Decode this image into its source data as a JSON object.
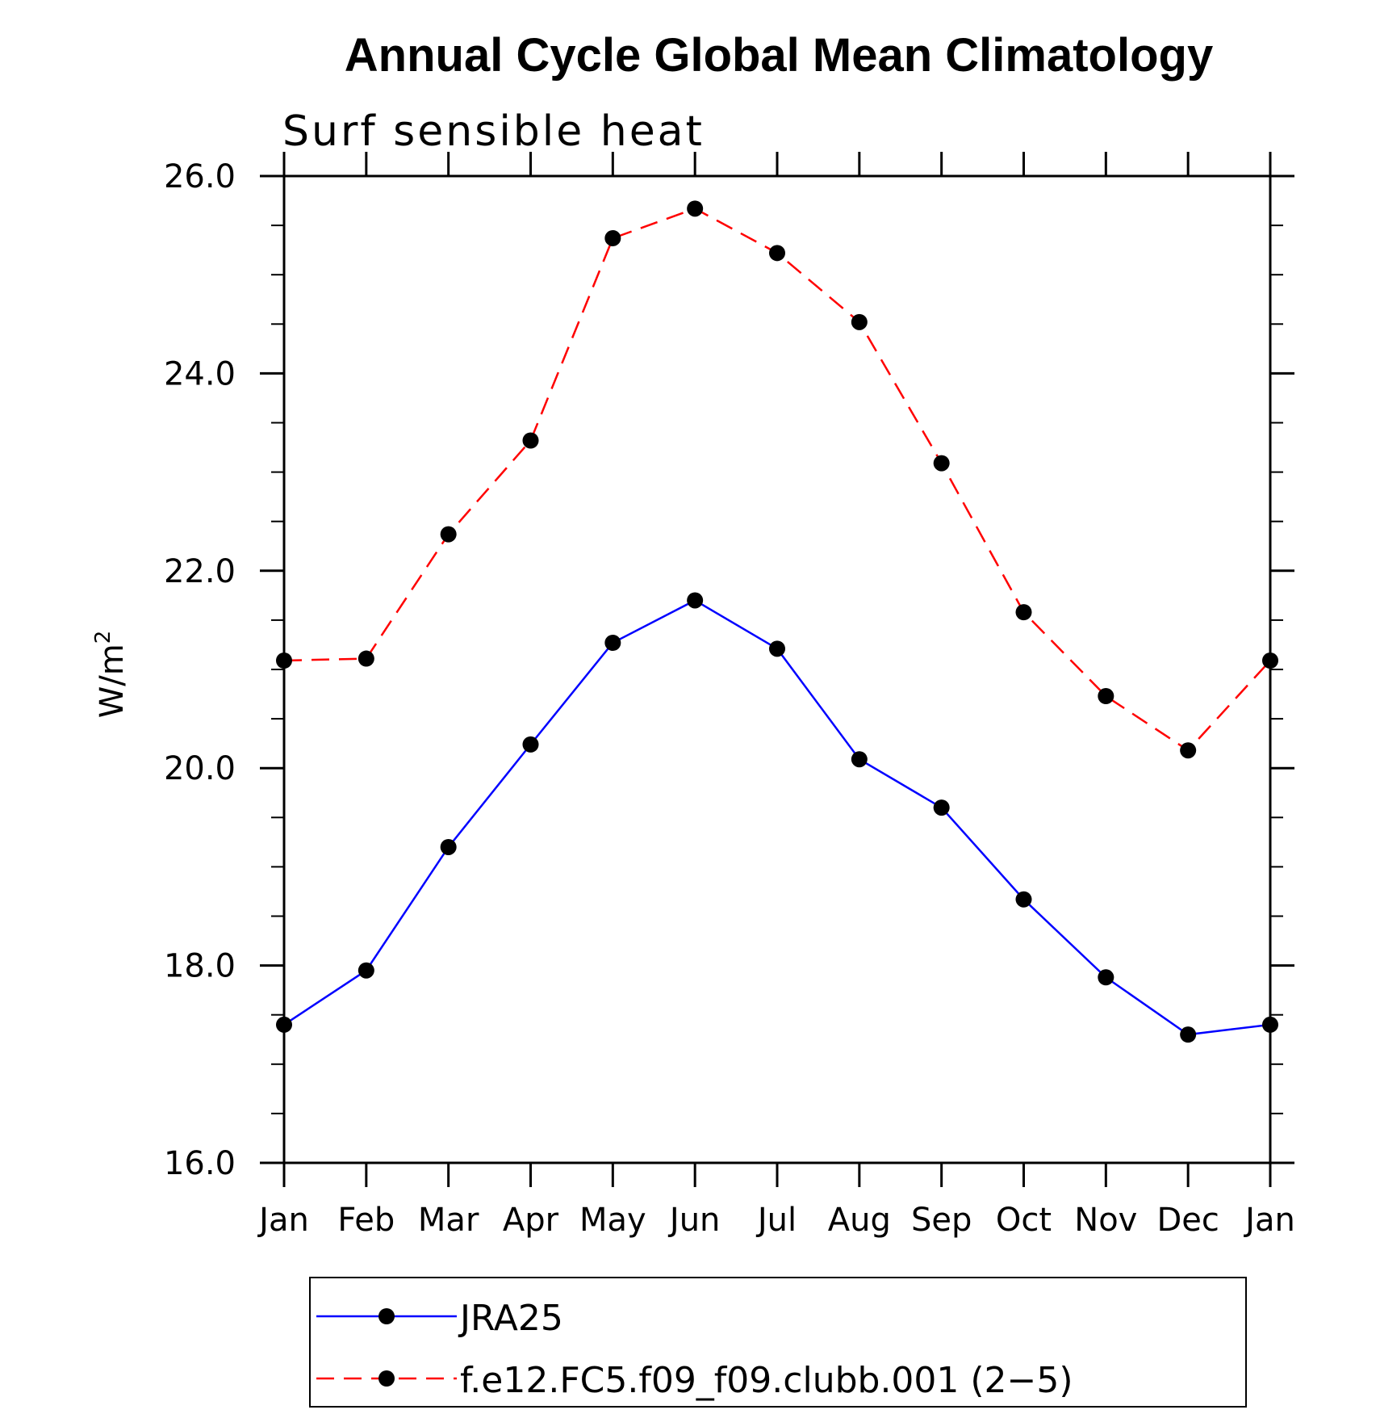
{
  "chart_data": {
    "type": "line",
    "title": "Annual Cycle Global Mean Climatology",
    "subtitle": "Surf sensible heat",
    "xlabel": "",
    "ylabel": "W/m",
    "ylabel_sup": "2",
    "categories": [
      "Jan",
      "Feb",
      "Mar",
      "Apr",
      "May",
      "Jun",
      "Jul",
      "Aug",
      "Sep",
      "Oct",
      "Nov",
      "Dec",
      "Jan"
    ],
    "ylim": [
      16.0,
      26.0
    ],
    "yticks": [
      16.0,
      18.0,
      20.0,
      22.0,
      24.0,
      26.0
    ],
    "ytick_labels": [
      "16.0",
      "18.0",
      "20.0",
      "22.0",
      "24.0",
      "26.0"
    ],
    "grid": false,
    "legend_position": "bottom",
    "series": [
      {
        "name": "JRA25",
        "color": "#0000ff",
        "line_style": "solid",
        "marker": "filled-circle",
        "values": [
          17.4,
          17.95,
          19.2,
          20.24,
          21.27,
          21.7,
          21.21,
          20.09,
          19.6,
          18.67,
          17.88,
          17.3,
          17.4
        ]
      },
      {
        "name": "f.e12.FC5.f09_f09.clubb.001 (2−5)",
        "color": "#ff0000",
        "line_style": "dashed",
        "marker": "filled-circle",
        "values": [
          21.09,
          21.11,
          22.37,
          23.32,
          25.37,
          25.67,
          25.22,
          24.52,
          23.09,
          21.58,
          20.73,
          20.18,
          21.09
        ]
      }
    ]
  }
}
